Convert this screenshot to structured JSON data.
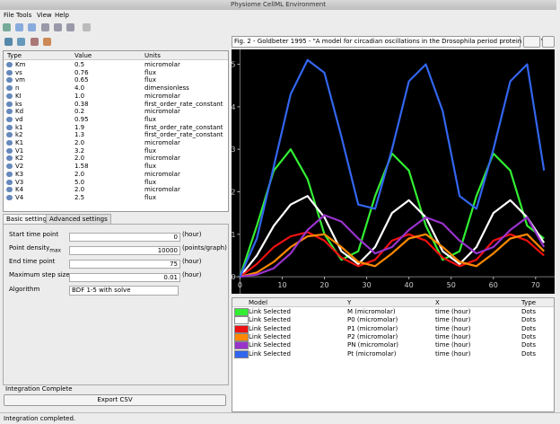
{
  "window": {
    "title": "Physiome CellML Environment"
  },
  "menu": [
    "File",
    "Tools",
    "View",
    "Help"
  ],
  "parameters": {
    "columns": [
      "Type",
      "Value",
      "Units"
    ],
    "rows": [
      [
        "Km",
        "0.5",
        "micromolar"
      ],
      [
        "vs",
        "0.76",
        "flux"
      ],
      [
        "vm",
        "0.65",
        "flux"
      ],
      [
        "n",
        "4.0",
        "dimensionless"
      ],
      [
        "KI",
        "1.0",
        "micromolar"
      ],
      [
        "ks",
        "0.38",
        "first_order_rate_constant"
      ],
      [
        "Kd",
        "0.2",
        "micromolar"
      ],
      [
        "vd",
        "0.95",
        "flux"
      ],
      [
        "k1",
        "1.9",
        "first_order_rate_constant"
      ],
      [
        "k2",
        "1.3",
        "first_order_rate_constant"
      ],
      [
        "K1",
        "2.0",
        "micromolar"
      ],
      [
        "V1",
        "3.2",
        "flux"
      ],
      [
        "K2",
        "2.0",
        "micromolar"
      ],
      [
        "V2",
        "1.58",
        "flux"
      ],
      [
        "K3",
        "2.0",
        "micromolar"
      ],
      [
        "V3",
        "5.0",
        "flux"
      ],
      [
        "K4",
        "2.0",
        "micromolar"
      ],
      [
        "V4",
        "2.5",
        "flux"
      ]
    ]
  },
  "tabs": [
    "Basic settings",
    "Advanced settings"
  ],
  "settings": [
    {
      "label": "Start time point",
      "value": "0",
      "unit": "(hour)"
    },
    {
      "label": "Point density",
      "sub": "max",
      "value": "10000",
      "unit": "(points/graph)"
    },
    {
      "label": "End time point",
      "value": "75",
      "unit": "(hour)"
    },
    {
      "label": "Maximum step size",
      "value": "0.01",
      "unit": "(hour)"
    }
  ],
  "algorithm": {
    "label": "Algorithm",
    "value": "BDF 1-5 with solve"
  },
  "integration_status": "Integration Complete",
  "export_button": "Export CSV",
  "status_bar": "Integration completed.",
  "figure_select": "Fig. 2 - Goldbeter 1995 - \"A model for circadian oscillations in the Drosophila period protein (PER)\"",
  "plot": {
    "type": "line",
    "xlim": [
      -2,
      74.5
    ],
    "ylim": [
      -0.4,
      5.35
    ],
    "xticks": [
      0,
      10,
      20,
      30,
      40,
      50,
      60,
      70
    ],
    "yticks": [
      0,
      1,
      2,
      3,
      4,
      5
    ],
    "x": [
      0,
      4,
      8,
      12,
      16,
      20,
      24,
      28,
      32,
      36,
      40,
      44,
      48,
      52,
      56,
      60,
      64,
      68,
      72
    ],
    "series": [
      {
        "name": "M (micromolar)",
        "color": "#33ee33",
        "values": [
          0,
          1.2,
          2.5,
          3.0,
          2.3,
          1.0,
          0.4,
          0.6,
          1.9,
          2.9,
          2.5,
          1.2,
          0.4,
          0.6,
          1.9,
          2.9,
          2.5,
          1.2,
          0.9
        ]
      },
      {
        "name": "P0 (micromolar)",
        "color": "#ffffff",
        "values": [
          0,
          0.5,
          1.2,
          1.7,
          1.9,
          1.4,
          0.6,
          0.3,
          0.7,
          1.5,
          1.8,
          1.4,
          0.6,
          0.3,
          0.7,
          1.5,
          1.8,
          1.4,
          0.8
        ]
      },
      {
        "name": "P1 (micromolar)",
        "color": "#ee1111",
        "values": [
          0,
          0.3,
          0.7,
          0.95,
          1.05,
          0.85,
          0.45,
          0.25,
          0.4,
          0.85,
          1.0,
          0.85,
          0.45,
          0.25,
          0.4,
          0.85,
          1.0,
          0.85,
          0.5
        ]
      },
      {
        "name": "P2 (micromolar)",
        "color": "#ff8800",
        "values": [
          0,
          0.1,
          0.35,
          0.7,
          0.95,
          1.0,
          0.7,
          0.35,
          0.25,
          0.55,
          0.9,
          1.0,
          0.7,
          0.35,
          0.25,
          0.55,
          0.9,
          1.0,
          0.6
        ]
      },
      {
        "name": "PN (micromolar)",
        "color": "#9933cc",
        "values": [
          0,
          0.05,
          0.2,
          0.55,
          1.1,
          1.45,
          1.3,
          0.9,
          0.55,
          0.7,
          1.1,
          1.4,
          1.25,
          0.85,
          0.55,
          0.7,
          1.1,
          1.4,
          0.7
        ]
      },
      {
        "name": "Pt (micromolar)",
        "color": "#3366ee",
        "values": [
          0,
          0.9,
          2.6,
          4.3,
          5.1,
          4.8,
          3.3,
          1.7,
          1.6,
          3.0,
          4.6,
          5.0,
          3.9,
          1.9,
          1.6,
          3.0,
          4.6,
          5.0,
          2.5
        ]
      }
    ]
  },
  "legend_table": {
    "columns": [
      "Model",
      "Y",
      "X",
      "Type"
    ],
    "model": "Link Selected",
    "x": "time (hour)",
    "kind": "Dots"
  }
}
